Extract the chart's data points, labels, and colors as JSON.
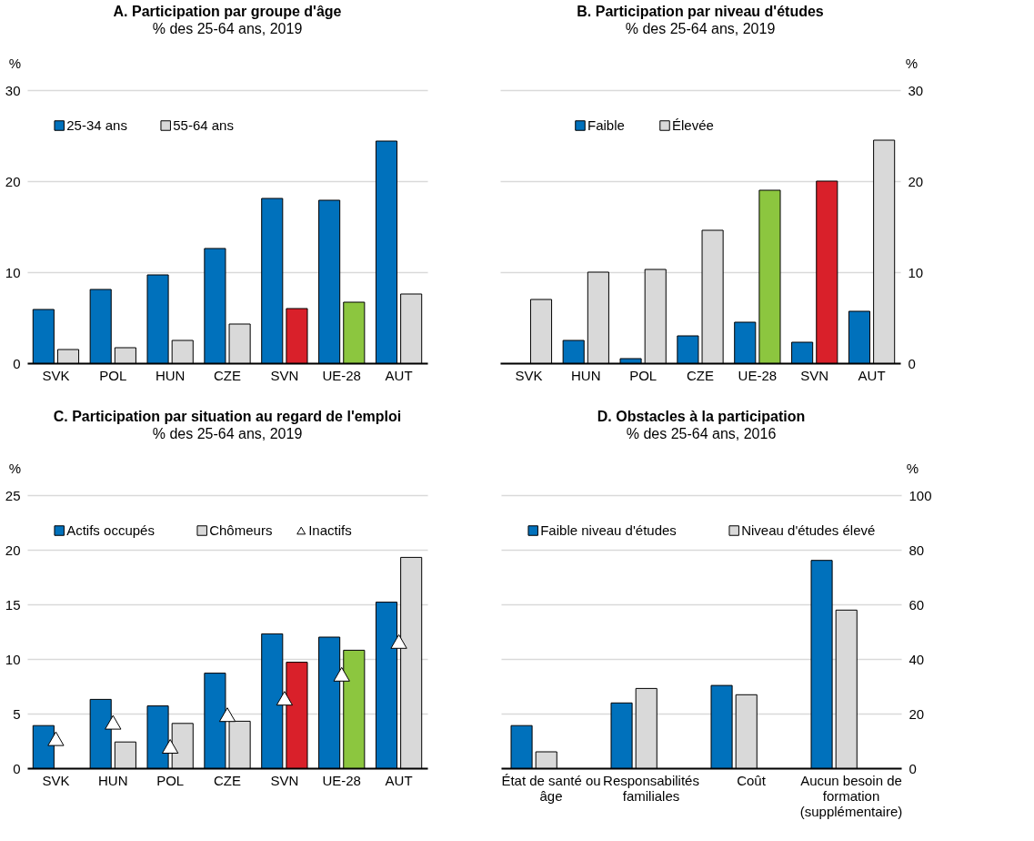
{
  "chart_data": [
    {
      "type": "bar",
      "title": "A. Participation par groupe d'âge",
      "subtitle": "% des 25-64 ans, 2019",
      "ylabel": "%",
      "categories": [
        "SVK",
        "POL",
        "HUN",
        "CZE",
        "SVN",
        "UE-28",
        "AUT"
      ],
      "ylim": [
        0,
        30
      ],
      "yticks": [
        0,
        10,
        20,
        30
      ],
      "grid": "y",
      "legend": "top left",
      "series": [
        {
          "name": "25-34 ans",
          "color": "#0071bc",
          "values": [
            5.9,
            8.1,
            9.7,
            12.6,
            18.1,
            17.9,
            24.4
          ]
        },
        {
          "name": "55-64 ans",
          "color": "#d9d9d9",
          "colors": [
            "#d9d9d9",
            "#d9d9d9",
            "#d9d9d9",
            "#d9d9d9",
            "#d9202a",
            "#8cc63f",
            "#d9d9d9"
          ],
          "values": [
            1.5,
            1.7,
            2.5,
            4.3,
            6.0,
            6.7,
            7.6
          ]
        }
      ]
    },
    {
      "type": "bar",
      "title": "B. Participation par niveau d'études",
      "subtitle": "% des 25-64 ans, 2019",
      "y2label": "%",
      "categories": [
        "SVK",
        "HUN",
        "POL",
        "CZE",
        "UE-28",
        "SVN",
        "AUT"
      ],
      "y2lim": [
        0,
        30
      ],
      "y2ticks": [
        0,
        10,
        20,
        30
      ],
      "grid": "y",
      "legend": "top",
      "series": [
        {
          "name": "Faible",
          "axis": "y2",
          "color": "#0071bc",
          "values": [
            null,
            2.5,
            0.5,
            3.0,
            4.5,
            2.3,
            5.7
          ]
        },
        {
          "name": "Élevée",
          "axis": "y2",
          "color": "#d9d9d9",
          "colors": [
            "#d9d9d9",
            "#d9d9d9",
            "#d9d9d9",
            "#d9d9d9",
            "#8cc63f",
            "#d9202a",
            "#d9d9d9"
          ],
          "values": [
            7.0,
            10.0,
            10.3,
            14.6,
            19.0,
            20.0,
            24.5
          ]
        }
      ]
    },
    {
      "type": "bar",
      "title": "C. Participation par situation au regard de l'emploi",
      "subtitle": "% des 25-64 ans, 2019",
      "ylabel": "%",
      "categories": [
        "SVK",
        "HUN",
        "POL",
        "CZE",
        "SVN",
        "UE-28",
        "AUT"
      ],
      "ylim": [
        0,
        25
      ],
      "yticks": [
        0,
        5,
        10,
        15,
        20,
        25
      ],
      "grid": "y",
      "legend": "top left",
      "series": [
        {
          "name": "Actifs occupés",
          "color": "#0071bc",
          "values": [
            3.9,
            6.3,
            5.7,
            8.7,
            12.3,
            12.0,
            15.2
          ]
        },
        {
          "name": "Chômeurs",
          "color": "#d9d9d9",
          "colors": [
            "#d9d9d9",
            "#d9d9d9",
            "#d9d9d9",
            "#d9d9d9",
            "#d9202a",
            "#8cc63f",
            "#d9d9d9"
          ],
          "values": [
            null,
            2.4,
            4.1,
            4.3,
            9.7,
            10.8,
            19.3
          ]
        },
        {
          "name": "Inactifs",
          "type": "scatter",
          "marker": "triangle",
          "color": "#ffffff",
          "values": [
            2.7,
            4.2,
            2.0,
            4.9,
            6.4,
            8.6,
            11.6
          ]
        }
      ]
    },
    {
      "type": "bar",
      "title": "D. Obstacles à la participation",
      "subtitle": "% des 25-64 ans, 2016",
      "y2label": "%",
      "categories": [
        "État de santé ou âge",
        "Responsabilités familiales",
        "Coût",
        "Aucun besoin de formation (supplémentaire)"
      ],
      "y2lim": [
        0,
        100
      ],
      "y2ticks": [
        0,
        20,
        40,
        60,
        80,
        100
      ],
      "grid": "y",
      "legend": "top left",
      "series": [
        {
          "name": "Faible niveau d'études",
          "axis": "y2",
          "color": "#0071bc",
          "values": [
            15.6,
            23.9,
            30.3,
            76.1
          ]
        },
        {
          "name": "Niveau d'études élevé",
          "axis": "y2",
          "color": "#d9d9d9",
          "values": [
            6.0,
            29.2,
            26.9,
            57.9
          ]
        }
      ]
    }
  ]
}
